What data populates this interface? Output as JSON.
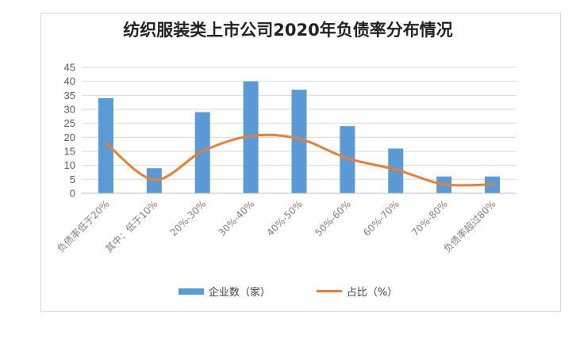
{
  "chart_data": {
    "type": "bar",
    "title": "纺织服装类上市公司2020年负债率分布情况",
    "categories": [
      "负债率低于20%",
      "其中：低于10%",
      "20%-30%",
      "30%-40%",
      "40%-50%",
      "50%-60%",
      "60%-70%",
      "70%-80%",
      "负债率超过80%"
    ],
    "series": [
      {
        "name": "企业数（家）",
        "type": "bar",
        "color": "#5b9bd5",
        "values": [
          34,
          9,
          29,
          40,
          37,
          24,
          16,
          6,
          6
        ]
      },
      {
        "name": "占比（%）",
        "type": "line",
        "color": "#ed7d31",
        "values": [
          18,
          4.8,
          15,
          20.5,
          19.5,
          12.5,
          8.5,
          3.2,
          3.2
        ]
      }
    ],
    "ylim": [
      0,
      45
    ],
    "yticks": [
      0,
      5,
      10,
      15,
      20,
      25,
      30,
      35,
      40,
      45
    ],
    "grid": true,
    "legend_position": "bottom"
  }
}
